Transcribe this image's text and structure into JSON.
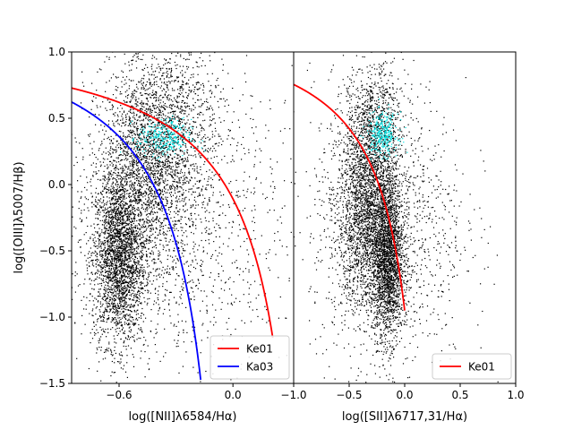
{
  "chart_data": [
    {
      "type": "scatter",
      "panel": "left",
      "xlabel": "log([NII]λ6584/Hα)",
      "ylabel": "log([OIII]λ5007/Hβ)",
      "xlim": [
        -0.85,
        0.32
      ],
      "ylim": [
        -1.5,
        1.0
      ],
      "xticks": [
        {
          "value": -0.6,
          "label": "−0.6"
        },
        {
          "value": 0.0,
          "label": "0.0"
        }
      ],
      "yticks": [
        {
          "value": 1.0,
          "label": "1.0"
        },
        {
          "value": 0.5,
          "label": "0.5"
        },
        {
          "value": 0.0,
          "label": "0.0"
        },
        {
          "value": -0.5,
          "label": "−0.5"
        },
        {
          "value": -1.0,
          "label": "−1.0"
        },
        {
          "value": -1.5,
          "label": "−1.5"
        }
      ],
      "legend": {
        "position": "lower-right",
        "entries": [
          "Ke01",
          "Ka03"
        ]
      },
      "series": [
        {
          "name": "Ke01",
          "kind": "curve",
          "color": "#ff0000",
          "formula": "0.61/(x-0.47)+1.19",
          "x_range": [
            -0.85,
            0.21
          ]
        },
        {
          "name": "Ka03",
          "kind": "curve",
          "color": "#0000ff",
          "formula": "0.61/(x-0.05)+1.3",
          "x_range": [
            -0.85,
            -0.17
          ]
        },
        {
          "name": "galaxies",
          "kind": "points",
          "color": "#000000",
          "clusters": [
            {
              "x": -0.6,
              "y": -0.55,
              "sx": 0.07,
              "sy": 0.33,
              "n": 2600
            },
            {
              "x": -0.44,
              "y": 0.12,
              "sx": 0.13,
              "sy": 0.34,
              "n": 1900
            },
            {
              "x": -0.34,
              "y": 0.55,
              "sx": 0.15,
              "sy": 0.25,
              "n": 800
            },
            {
              "x": -0.3,
              "y": -0.3,
              "sx": 0.3,
              "sy": 0.55,
              "n": 1300
            }
          ]
        },
        {
          "name": "highlighted",
          "kind": "points",
          "color": "#00e5e5",
          "clusters": [
            {
              "x": -0.36,
              "y": 0.35,
              "sx": 0.07,
              "sy": 0.07,
              "n": 320
            }
          ]
        }
      ]
    },
    {
      "type": "scatter",
      "panel": "right",
      "xlabel": "log([SII]λ6717,31/Hα)",
      "ylabel": "",
      "xlim": [
        -1.0,
        1.0
      ],
      "ylim": [
        -1.5,
        1.0
      ],
      "xticks": [
        {
          "value": -1.0,
          "label": "−1.0"
        },
        {
          "value": -0.5,
          "label": "−0.5"
        },
        {
          "value": 0.0,
          "label": "0.0"
        },
        {
          "value": 0.5,
          "label": "0.5"
        },
        {
          "value": 1.0,
          "label": "1.0"
        }
      ],
      "legend": {
        "position": "lower-right",
        "entries": [
          "Ke01"
        ]
      },
      "series": [
        {
          "name": "Ke01",
          "kind": "curve",
          "color": "#ff0000",
          "formula": "0.72/(x-0.32)+1.30",
          "x_range": [
            -1.0,
            0.0
          ]
        },
        {
          "name": "galaxies",
          "kind": "points",
          "color": "#000000",
          "clusters": [
            {
              "x": -0.15,
              "y": -0.55,
              "sx": 0.07,
              "sy": 0.3,
              "n": 2200
            },
            {
              "x": -0.35,
              "y": -0.25,
              "sx": 0.13,
              "sy": 0.35,
              "n": 2000
            },
            {
              "x": -0.28,
              "y": 0.4,
              "sx": 0.13,
              "sy": 0.25,
              "n": 900
            },
            {
              "x": -0.15,
              "y": -0.3,
              "sx": 0.35,
              "sy": 0.55,
              "n": 1300
            }
          ]
        },
        {
          "name": "highlighted",
          "kind": "points",
          "color": "#00e5e5",
          "clusters": [
            {
              "x": -0.2,
              "y": 0.38,
              "sx": 0.07,
              "sy": 0.08,
              "n": 320
            }
          ]
        }
      ]
    }
  ]
}
